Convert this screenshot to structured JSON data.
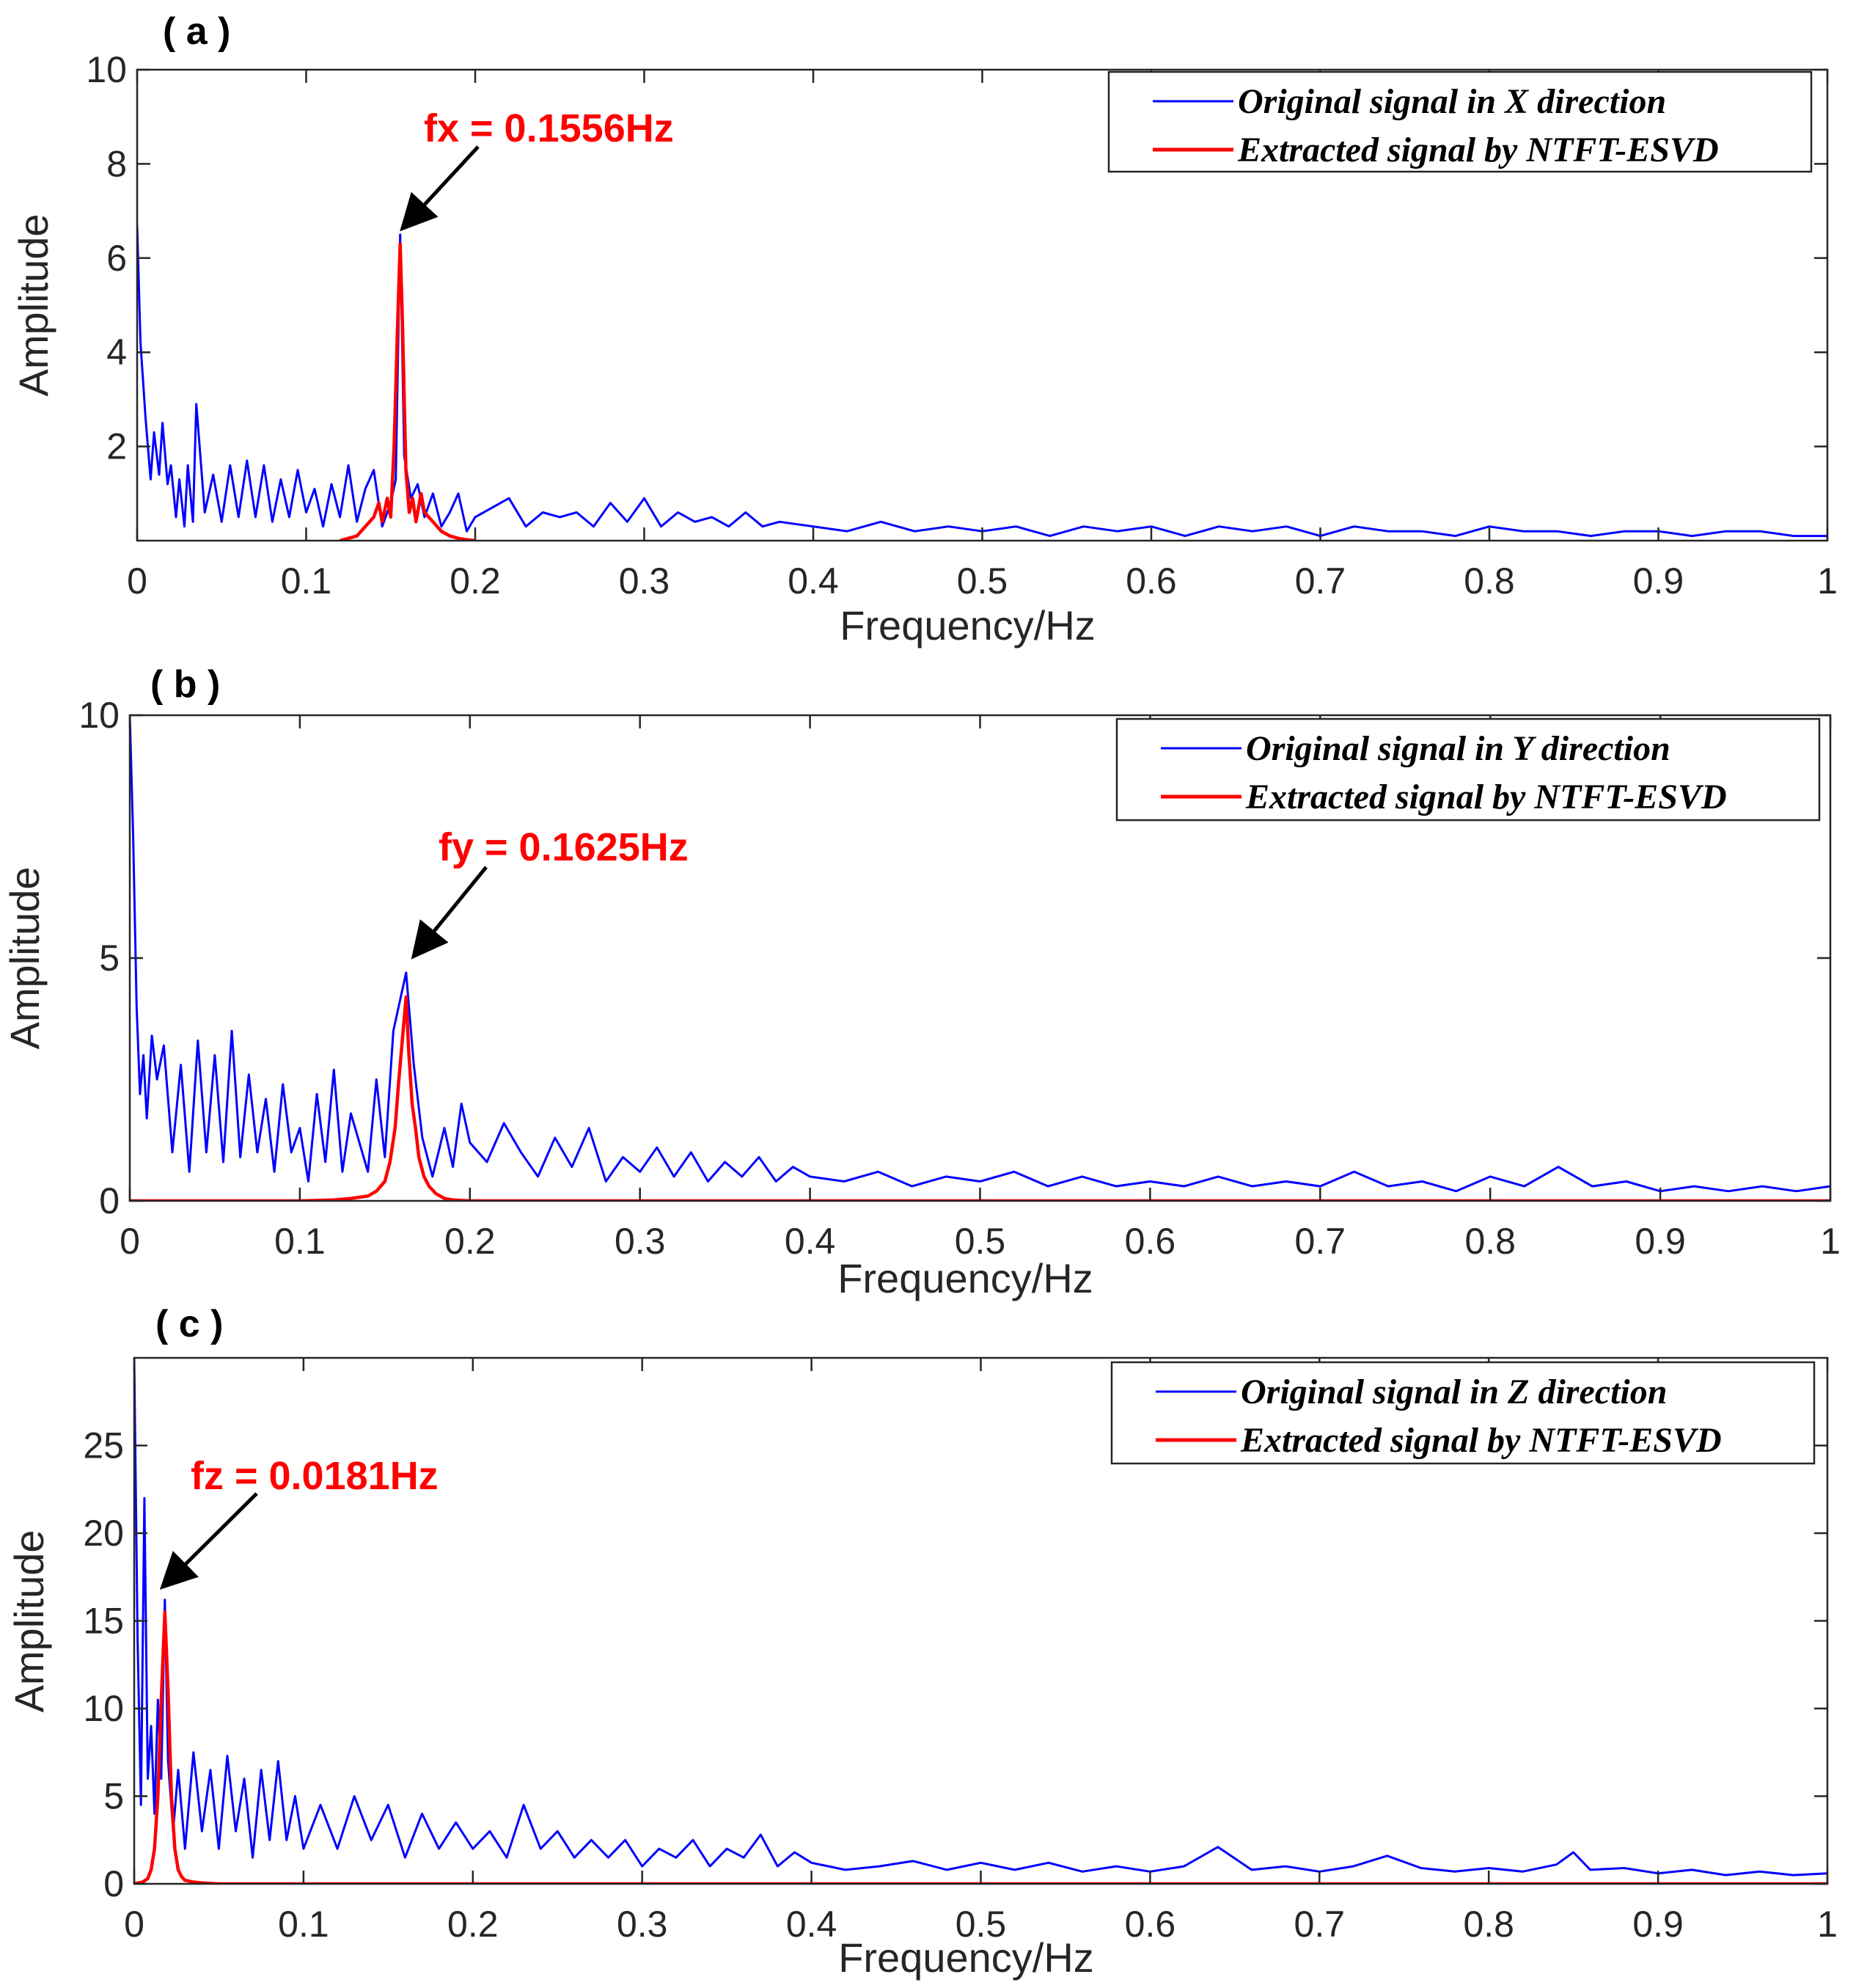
{
  "figure": {
    "colors": {
      "original": "#0000ff",
      "extracted": "#ff0000",
      "arrow": "#000000",
      "axis": "#262626",
      "annotation": "#ff0000"
    }
  },
  "chart_data": [
    {
      "type": "line",
      "panel_label": "( a )",
      "xlabel": "Frequency/Hz",
      "ylabel": "Amplitude",
      "xlim": [
        0,
        1
      ],
      "ylim": [
        0,
        10
      ],
      "xticks": [
        0,
        0.1,
        0.2,
        0.3,
        0.4,
        0.5,
        0.6,
        0.7,
        0.8,
        0.9,
        1
      ],
      "xtick_labels": [
        "0",
        "0.1",
        "0.2",
        "0.3",
        "0.4",
        "0.5",
        "0.6",
        "0.7",
        "0.8",
        "0.9",
        "1"
      ],
      "yticks": [
        2,
        4,
        6,
        8,
        10
      ],
      "ytick_labels": [
        "2",
        "4",
        "6",
        "8",
        "10"
      ],
      "legend": [
        "Original signal in X  direction",
        "Extracted signal by NTFT-ESVD"
      ],
      "legend_position": "top-right",
      "annotation": {
        "text": "fx = 0.1556Hz",
        "x": 0.1556,
        "y": 6.5
      },
      "series": [
        {
          "name": "Original signal in X  direction",
          "color": "#0000ff",
          "x": [
            0,
            0.002,
            0.005,
            0.008,
            0.01,
            0.013,
            0.015,
            0.018,
            0.02,
            0.023,
            0.025,
            0.028,
            0.03,
            0.033,
            0.035,
            0.04,
            0.045,
            0.05,
            0.055,
            0.06,
            0.065,
            0.07,
            0.075,
            0.08,
            0.085,
            0.09,
            0.095,
            0.1,
            0.105,
            0.11,
            0.115,
            0.12,
            0.125,
            0.13,
            0.135,
            0.14,
            0.145,
            0.15,
            0.153,
            0.1556,
            0.158,
            0.162,
            0.166,
            0.17,
            0.175,
            0.18,
            0.185,
            0.19,
            0.195,
            0.2,
            0.21,
            0.22,
            0.23,
            0.24,
            0.25,
            0.26,
            0.27,
            0.28,
            0.29,
            0.3,
            0.31,
            0.32,
            0.33,
            0.34,
            0.35,
            0.36,
            0.37,
            0.38,
            0.4,
            0.42,
            0.44,
            0.46,
            0.48,
            0.5,
            0.52,
            0.54,
            0.56,
            0.58,
            0.6,
            0.62,
            0.64,
            0.66,
            0.68,
            0.7,
            0.72,
            0.74,
            0.76,
            0.78,
            0.8,
            0.82,
            0.84,
            0.86,
            0.88,
            0.9,
            0.92,
            0.94,
            0.96,
            0.98,
            1
          ],
          "y": [
            6.7,
            4.2,
            2.6,
            1.3,
            2.3,
            1.4,
            2.5,
            1.2,
            1.6,
            0.5,
            1.3,
            0.3,
            1.6,
            0.4,
            2.9,
            0.6,
            1.4,
            0.4,
            1.6,
            0.5,
            1.7,
            0.5,
            1.6,
            0.4,
            1.3,
            0.5,
            1.5,
            0.6,
            1.1,
            0.3,
            1.2,
            0.5,
            1.6,
            0.4,
            1.1,
            1.5,
            0.3,
            0.8,
            1.3,
            6.5,
            1.8,
            0.9,
            1.2,
            0.5,
            1.0,
            0.3,
            0.6,
            1.0,
            0.2,
            0.5,
            0.7,
            0.9,
            0.3,
            0.6,
            0.5,
            0.6,
            0.3,
            0.8,
            0.4,
            0.9,
            0.3,
            0.6,
            0.4,
            0.5,
            0.3,
            0.6,
            0.3,
            0.4,
            0.3,
            0.2,
            0.4,
            0.2,
            0.3,
            0.2,
            0.3,
            0.1,
            0.3,
            0.2,
            0.3,
            0.1,
            0.3,
            0.2,
            0.3,
            0.1,
            0.3,
            0.2,
            0.2,
            0.1,
            0.3,
            0.2,
            0.2,
            0.1,
            0.2,
            0.2,
            0.1,
            0.2,
            0.2,
            0.1,
            0.1
          ]
        },
        {
          "name": "Extracted signal by NTFT-ESVD",
          "color": "#ff0000",
          "x": [
            0.12,
            0.125,
            0.13,
            0.135,
            0.14,
            0.143,
            0.145,
            0.148,
            0.15,
            0.152,
            0.154,
            0.1556,
            0.157,
            0.159,
            0.161,
            0.163,
            0.165,
            0.168,
            0.17,
            0.175,
            0.18,
            0.185,
            0.19,
            0.195,
            0.2
          ],
          "y": [
            0,
            0.05,
            0.1,
            0.3,
            0.5,
            0.8,
            0.4,
            0.9,
            0.5,
            2.0,
            4.5,
            6.3,
            4.6,
            1.5,
            0.6,
            0.9,
            0.4,
            1.0,
            0.6,
            0.4,
            0.2,
            0.1,
            0.05,
            0.02,
            0
          ]
        }
      ]
    },
    {
      "type": "line",
      "panel_label": "( b )",
      "xlabel": "Frequency/Hz",
      "ylabel": "Amplitude",
      "xlim": [
        0,
        1
      ],
      "ylim": [
        0,
        10
      ],
      "xticks": [
        0,
        0.1,
        0.2,
        0.3,
        0.4,
        0.5,
        0.6,
        0.7,
        0.8,
        0.9,
        1
      ],
      "xtick_labels": [
        "0",
        "0.1",
        "0.2",
        "0.3",
        "0.4",
        "0.5",
        "0.6",
        "0.7",
        "0.8",
        "0.9",
        "1"
      ],
      "yticks": [
        0,
        5,
        10
      ],
      "ytick_labels": [
        "0",
        "5",
        "10"
      ],
      "legend": [
        "Original signal in Y direction",
        "Extracted signal by NTFT-ESVD"
      ],
      "legend_position": "top-right",
      "annotation": {
        "text": "fy = 0.1625Hz",
        "x": 0.1625,
        "y": 4.7
      },
      "series": [
        {
          "name": "Original signal in Y direction",
          "color": "#0000ff",
          "x": [
            0,
            0.002,
            0.004,
            0.006,
            0.008,
            0.01,
            0.013,
            0.016,
            0.02,
            0.025,
            0.03,
            0.035,
            0.04,
            0.045,
            0.05,
            0.055,
            0.06,
            0.065,
            0.07,
            0.075,
            0.08,
            0.085,
            0.09,
            0.095,
            0.1,
            0.105,
            0.11,
            0.115,
            0.12,
            0.125,
            0.13,
            0.135,
            0.14,
            0.145,
            0.15,
            0.155,
            0.1625,
            0.167,
            0.172,
            0.178,
            0.185,
            0.19,
            0.195,
            0.2,
            0.21,
            0.22,
            0.23,
            0.24,
            0.25,
            0.26,
            0.27,
            0.28,
            0.29,
            0.3,
            0.31,
            0.32,
            0.33,
            0.34,
            0.35,
            0.36,
            0.37,
            0.38,
            0.39,
            0.4,
            0.42,
            0.44,
            0.46,
            0.48,
            0.5,
            0.52,
            0.54,
            0.56,
            0.58,
            0.6,
            0.62,
            0.64,
            0.66,
            0.68,
            0.7,
            0.72,
            0.74,
            0.76,
            0.78,
            0.8,
            0.82,
            0.84,
            0.86,
            0.88,
            0.9,
            0.92,
            0.94,
            0.96,
            0.98,
            1
          ],
          "y": [
            10,
            7.5,
            4.0,
            2.2,
            3.0,
            1.7,
            3.4,
            2.5,
            3.2,
            1.0,
            2.8,
            0.6,
            3.3,
            1.0,
            3.0,
            0.8,
            3.5,
            0.9,
            2.6,
            1.0,
            2.1,
            0.6,
            2.4,
            1.0,
            1.5,
            0.4,
            2.2,
            0.8,
            2.7,
            0.6,
            1.8,
            1.2,
            0.6,
            2.5,
            0.9,
            3.5,
            4.7,
            2.8,
            1.3,
            0.5,
            1.5,
            0.7,
            2.0,
            1.2,
            0.8,
            1.6,
            1.0,
            0.5,
            1.3,
            0.7,
            1.5,
            0.4,
            0.9,
            0.6,
            1.1,
            0.5,
            1.0,
            0.4,
            0.8,
            0.5,
            0.9,
            0.4,
            0.7,
            0.5,
            0.4,
            0.6,
            0.3,
            0.5,
            0.4,
            0.6,
            0.3,
            0.5,
            0.3,
            0.4,
            0.3,
            0.5,
            0.3,
            0.4,
            0.3,
            0.6,
            0.3,
            0.4,
            0.2,
            0.5,
            0.3,
            0.7,
            0.3,
            0.4,
            0.2,
            0.3,
            0.2,
            0.3,
            0.2,
            0.3
          ]
        },
        {
          "name": "Extracted signal by NTFT-ESVD",
          "color": "#ff0000",
          "x": [
            0,
            0.1,
            0.12,
            0.13,
            0.14,
            0.145,
            0.15,
            0.153,
            0.156,
            0.158,
            0.16,
            0.1625,
            0.164,
            0.166,
            0.168,
            0.17,
            0.173,
            0.176,
            0.18,
            0.185,
            0.19,
            0.2,
            1
          ],
          "y": [
            0,
            0,
            0.02,
            0.05,
            0.1,
            0.2,
            0.4,
            0.8,
            1.5,
            2.4,
            3.2,
            4.2,
            3.1,
            2.0,
            1.5,
            0.9,
            0.5,
            0.3,
            0.15,
            0.05,
            0.02,
            0,
            0
          ]
        }
      ]
    },
    {
      "type": "line",
      "panel_label": "( c )",
      "xlabel": "Frequency/Hz",
      "ylabel": "Amplitude",
      "xlim": [
        0,
        1
      ],
      "ylim": [
        0,
        30
      ],
      "xticks": [
        0,
        0.1,
        0.2,
        0.3,
        0.4,
        0.5,
        0.6,
        0.7,
        0.8,
        0.9,
        1
      ],
      "xtick_labels": [
        "0",
        "0.1",
        "0.2",
        "0.3",
        "0.4",
        "0.5",
        "0.6",
        "0.7",
        "0.8",
        "0.9",
        "1"
      ],
      "yticks": [
        0,
        5,
        10,
        15,
        20,
        25
      ],
      "ytick_labels": [
        "0",
        "5",
        "10",
        "15",
        "20",
        "25"
      ],
      "legend": [
        "Original signal in Z direction",
        "Extracted signal by NTFT-ESVD"
      ],
      "legend_position": "top-right",
      "annotation": {
        "text": "fz = 0.0181Hz",
        "x": 0.0181,
        "y": 16.2
      },
      "series": [
        {
          "name": "Original signal in Z direction",
          "color": "#0000ff",
          "x": [
            0,
            0.002,
            0.004,
            0.006,
            0.008,
            0.01,
            0.012,
            0.014,
            0.016,
            0.0181,
            0.02,
            0.023,
            0.026,
            0.03,
            0.035,
            0.04,
            0.045,
            0.05,
            0.055,
            0.06,
            0.065,
            0.07,
            0.075,
            0.08,
            0.085,
            0.09,
            0.095,
            0.1,
            0.11,
            0.12,
            0.13,
            0.14,
            0.15,
            0.16,
            0.17,
            0.18,
            0.19,
            0.2,
            0.21,
            0.22,
            0.23,
            0.24,
            0.25,
            0.26,
            0.27,
            0.28,
            0.29,
            0.3,
            0.31,
            0.32,
            0.33,
            0.34,
            0.35,
            0.36,
            0.37,
            0.38,
            0.39,
            0.4,
            0.42,
            0.44,
            0.46,
            0.48,
            0.5,
            0.52,
            0.54,
            0.56,
            0.58,
            0.6,
            0.62,
            0.64,
            0.66,
            0.68,
            0.7,
            0.72,
            0.74,
            0.76,
            0.78,
            0.8,
            0.82,
            0.84,
            0.85,
            0.86,
            0.88,
            0.9,
            0.92,
            0.94,
            0.96,
            0.98,
            1
          ],
          "y": [
            30,
            14,
            4.5,
            22,
            6,
            9,
            4,
            10.5,
            6,
            16.2,
            7,
            3.0,
            6.5,
            2.0,
            7.5,
            3.0,
            6.5,
            2.0,
            7.3,
            3.0,
            6.0,
            1.5,
            6.5,
            2.5,
            7.0,
            2.5,
            5.0,
            2.0,
            4.5,
            2.0,
            5.0,
            2.5,
            4.5,
            1.5,
            4.0,
            2.0,
            3.5,
            2.0,
            3.0,
            1.5,
            4.5,
            2.0,
            3.0,
            1.5,
            2.5,
            1.5,
            2.5,
            1.0,
            2.0,
            1.5,
            2.5,
            1.0,
            2.0,
            1.5,
            2.8,
            1.0,
            1.8,
            1.2,
            0.8,
            1.0,
            1.3,
            0.8,
            1.2,
            0.8,
            1.2,
            0.7,
            1.0,
            0.7,
            1.0,
            2.1,
            0.8,
            1.0,
            0.7,
            1.0,
            1.6,
            0.9,
            0.7,
            0.9,
            0.7,
            1.1,
            1.8,
            0.8,
            0.9,
            0.6,
            0.8,
            0.5,
            0.7,
            0.5,
            0.6
          ]
        },
        {
          "name": "Extracted signal by NTFT-ESVD",
          "color": "#ff0000",
          "x": [
            0,
            0.005,
            0.008,
            0.01,
            0.012,
            0.014,
            0.016,
            0.0181,
            0.02,
            0.022,
            0.024,
            0.026,
            0.028,
            0.03,
            0.035,
            0.04,
            0.05,
            1
          ],
          "y": [
            0,
            0.1,
            0.3,
            0.8,
            2.0,
            5.0,
            10.5,
            15.5,
            11.0,
            5.0,
            2.0,
            0.8,
            0.4,
            0.2,
            0.1,
            0.05,
            0,
            0
          ]
        }
      ]
    }
  ]
}
